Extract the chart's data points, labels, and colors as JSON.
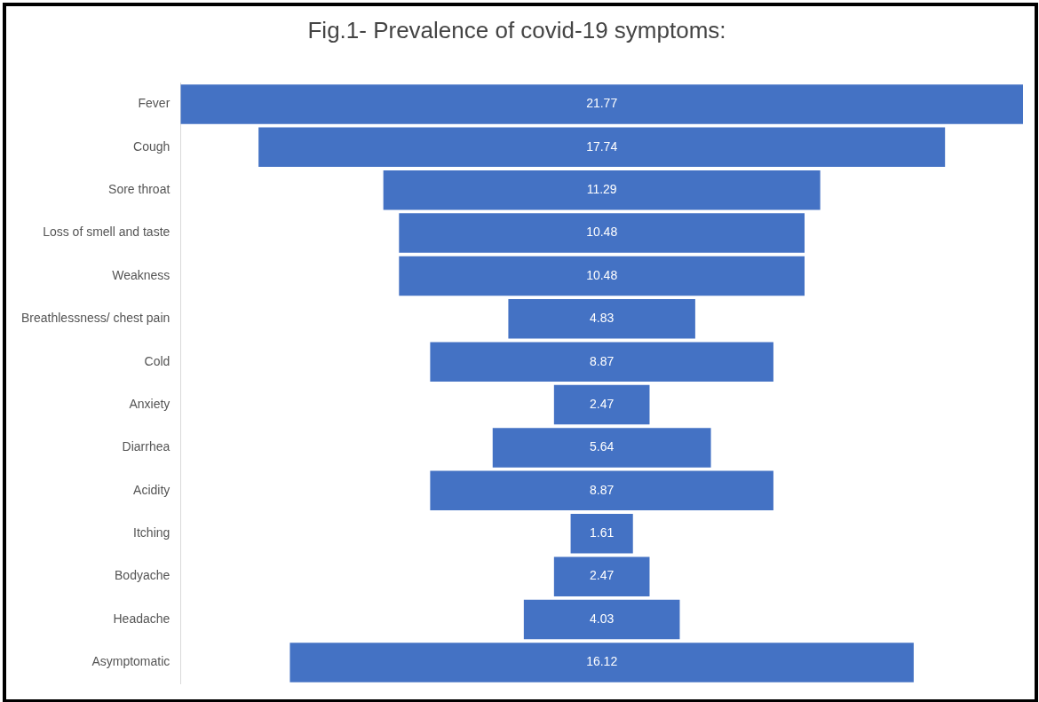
{
  "chart_data": {
    "type": "other",
    "title": "Fig.1- Prevalence of covid-19 symptoms:",
    "categories": [
      "Fever",
      "Cough",
      "Sore throat",
      "Loss of smell and taste",
      "Weakness",
      "Breathlessness/ chest pain",
      "Cold",
      "Anxiety",
      "Diarrhea",
      "Acidity",
      "Itching",
      "Bodyache",
      "Headache",
      "Asymptomatic"
    ],
    "values": [
      21.77,
      17.74,
      11.29,
      10.48,
      10.48,
      4.83,
      8.87,
      2.47,
      5.64,
      8.87,
      1.61,
      2.47,
      4.03,
      16.12
    ],
    "color": "#4472c4",
    "data_labels": true,
    "legend": false
  }
}
